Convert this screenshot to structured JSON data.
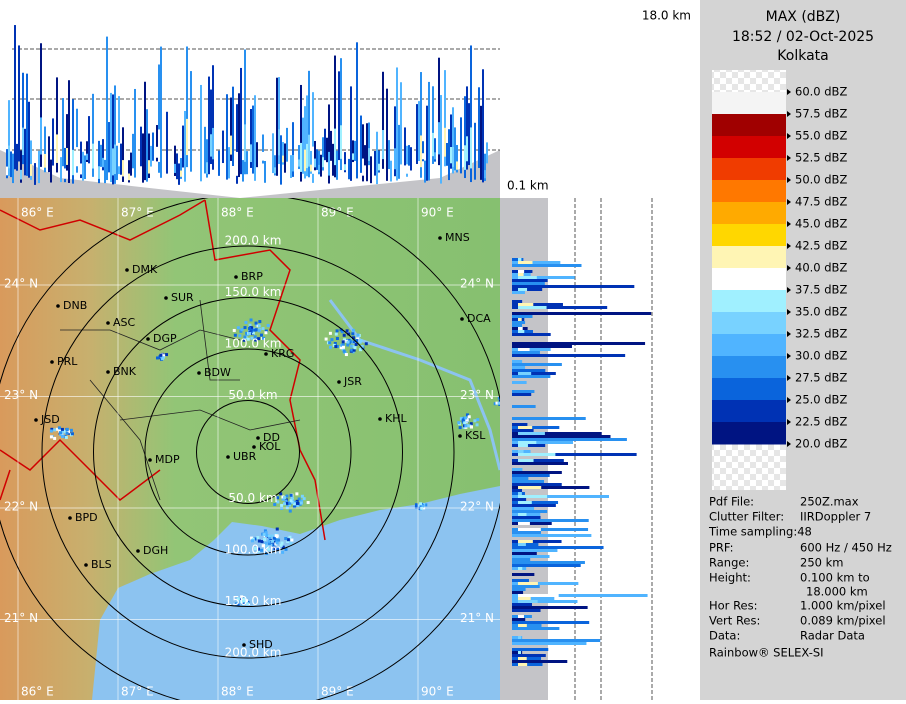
{
  "header": {
    "title": "MAX (dBZ)",
    "time": "18:52 / 02-Oct-2025",
    "station": "Kolkata"
  },
  "height_labels": {
    "top": "18.0 km",
    "bottom": "0.1 km"
  },
  "legend": {
    "labels": [
      "60.0 dBZ",
      "57.5 dBZ",
      "55.0 dBZ",
      "52.5 dBZ",
      "50.0 dBZ",
      "47.5 dBZ",
      "45.0 dBZ",
      "42.5 dBZ",
      "40.0 dBZ",
      "37.5 dBZ",
      "35.0 dBZ",
      "32.5 dBZ",
      "30.0 dBZ",
      "27.5 dBZ",
      "25.0 dBZ",
      "22.5 dBZ",
      "20.0 dBZ"
    ],
    "colors": [
      "#f4f4f4",
      "#a00000",
      "#d20000",
      "#f03c00",
      "#ff7800",
      "#ffaa00",
      "#ffd700",
      "#fff5b4",
      "#ffffff",
      "#a0f0ff",
      "#78d2ff",
      "#50b4ff",
      "#2890f0",
      "#0a64dc",
      "#0032b4",
      "#001482"
    ]
  },
  "info": [
    {
      "label": "Pdf File:",
      "value": "250Z.max"
    },
    {
      "label": "Clutter Filter:",
      "value": "IIRDoppler 7"
    },
    {
      "label": "Time sampling:48"
    },
    {
      "label": "PRF:",
      "value": "600 Hz / 450 Hz"
    },
    {
      "label": "Range:",
      "value": "250 km"
    },
    {
      "label": "Height:",
      "value": "0.100 km to",
      "value2": "18.000 km"
    },
    {
      "label": "Hor Res:",
      "value": "1.000 km/pixel"
    },
    {
      "label": "Vert Res:",
      "value": "0.089 km/pixel"
    },
    {
      "label": "Data:",
      "value": "Radar Data"
    }
  ],
  "footer": "Rainbow® SELEX-SI",
  "map": {
    "lon_ticks": [
      {
        "value": 86,
        "label": "86° E"
      },
      {
        "value": 87,
        "label": "87° E"
      },
      {
        "value": 88,
        "label": "88° E"
      },
      {
        "value": 89,
        "label": "89° E"
      },
      {
        "value": 90,
        "label": "90° E"
      }
    ],
    "lat_ticks": [
      {
        "value": 24,
        "label": "24° N"
      },
      {
        "value": 23,
        "label": "23° N"
      },
      {
        "value": 22,
        "label": "22° N"
      },
      {
        "value": 21,
        "label": "21° N"
      }
    ],
    "rings": [
      50,
      100,
      150,
      200,
      250
    ],
    "ring_labels_north": [
      {
        "value": 200,
        "label": "200.0 km"
      },
      {
        "value": 150,
        "label": "150.0 km"
      },
      {
        "value": 100,
        "label": "100.0 km"
      },
      {
        "value": 50,
        "label": "50.0 km"
      }
    ],
    "ring_labels_south": [
      {
        "value": 50,
        "label": "50.0 km"
      },
      {
        "value": 100,
        "label": "100.0 km"
      },
      {
        "value": 150,
        "label": "150.0 km"
      },
      {
        "value": 200,
        "label": "200.0 km"
      }
    ],
    "cities": [
      "MNS",
      "DMK",
      "BRP",
      "SUR",
      "DNB",
      "ASC",
      "DGP",
      "DCA",
      "KRG",
      "PRL",
      "BNK",
      "BDW",
      "JSR",
      "KHL",
      "JSD",
      "DD",
      "KOL",
      "KSL",
      "UBR",
      "MDP",
      "BPD",
      "DGH",
      "BLS",
      "SHD"
    ]
  }
}
